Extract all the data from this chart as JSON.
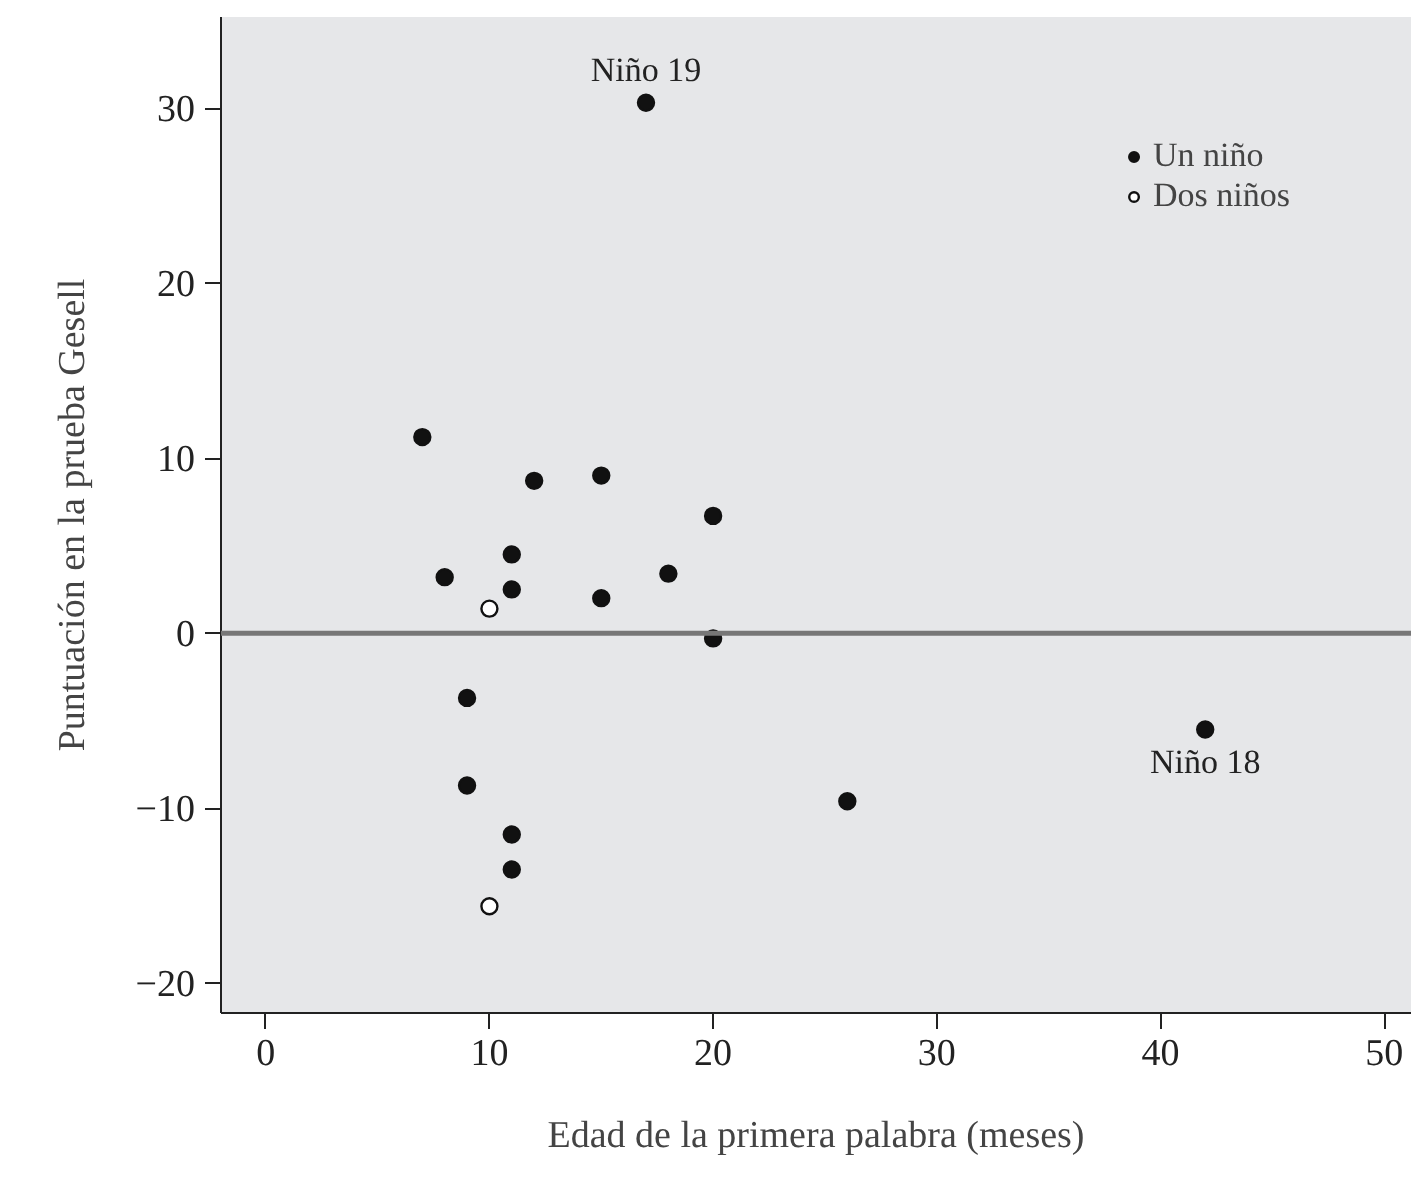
{
  "chart_data": {
    "type": "scatter",
    "xlabel": "Edad de la primera palabra (meses)",
    "ylabel": "Puntuación en la prueba Gesell",
    "xlim": [
      -2,
      51.2
    ],
    "ylim": [
      -21.7,
      35.2
    ],
    "xticks": [
      0,
      10,
      20,
      30,
      40,
      50
    ],
    "yticks": [
      -20,
      -10,
      0,
      10,
      20,
      30
    ],
    "series": [
      {
        "name": "Un niño",
        "color": "#111111",
        "x": [
          15,
          26,
          9,
          15,
          20,
          18,
          11,
          8,
          20,
          7,
          9,
          11,
          11,
          12,
          42,
          17,
          11
        ],
        "values": [
          2,
          -9.6,
          -8.7,
          9,
          -0.3,
          3.4,
          2.5,
          3.2,
          6.7,
          11.2,
          -3.7,
          -13.5,
          4.5,
          8.7,
          -5.5,
          30.3,
          -11.5
        ]
      },
      {
        "name": "Dos niños",
        "color": "#ffffff",
        "x": [
          10,
          10
        ],
        "values": [
          -15.6,
          1.4
        ]
      }
    ],
    "ref_lines": [
      {
        "axis": "y",
        "value": 0,
        "color": "#777777"
      }
    ],
    "annotations": [
      {
        "text": "Niño 19",
        "x": 17,
        "y": 30.3
      },
      {
        "text": "Niño 18",
        "x": 42,
        "y": -5.5
      }
    ],
    "marker": "circle",
    "legend": "top right"
  }
}
